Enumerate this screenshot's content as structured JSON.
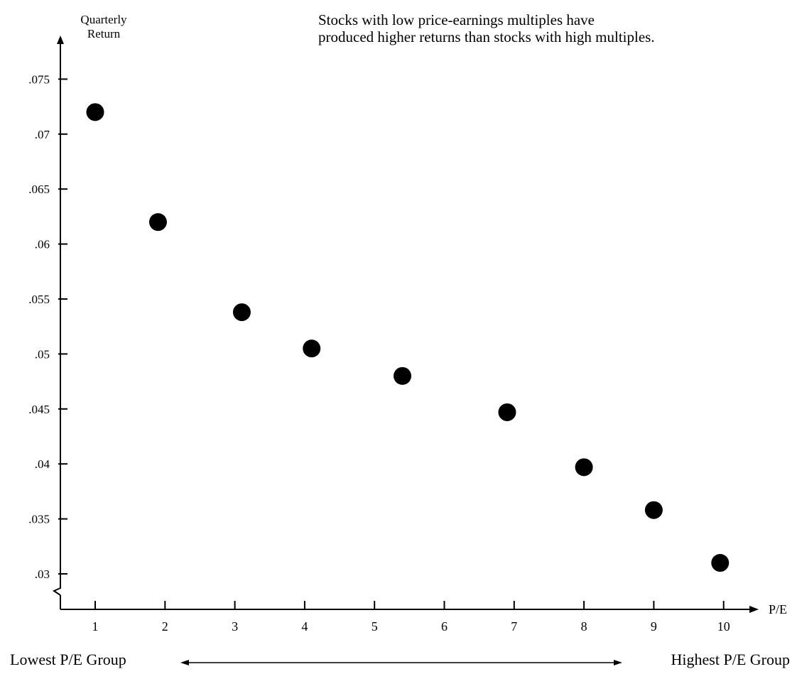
{
  "chart_data": {
    "type": "scatter",
    "title": "Stocks with low price-earnings multiples have produced higher returns than stocks with high multiples.",
    "title_lines": [
      "Stocks with low price-earnings multiples have",
      "produced higher returns than stocks with high multiples."
    ],
    "ylabel_lines": [
      "Quarterly",
      "Return"
    ],
    "xlabel": "P/E",
    "x_ticks": [
      1,
      2,
      3,
      4,
      5,
      6,
      7,
      8,
      9,
      10
    ],
    "x_tick_labels": [
      "1",
      "2",
      "3",
      "4",
      "5",
      "6",
      "7",
      "8",
      "9",
      "10"
    ],
    "y_ticks": [
      0.03,
      0.035,
      0.04,
      0.045,
      0.05,
      0.055,
      0.06,
      0.065,
      0.07,
      0.075
    ],
    "y_tick_labels": [
      ".03",
      ".035",
      ".04",
      ".045",
      ".05",
      ".055",
      ".06",
      ".065",
      ".07",
      ".075"
    ],
    "xlim": [
      0,
      10.4
    ],
    "ylim": [
      0.03,
      0.076
    ],
    "axis_break": true,
    "grid": false,
    "points": [
      {
        "x": 1.0,
        "y": 0.072
      },
      {
        "x": 1.9,
        "y": 0.062
      },
      {
        "x": 3.1,
        "y": 0.0538
      },
      {
        "x": 4.1,
        "y": 0.0505
      },
      {
        "x": 5.4,
        "y": 0.048
      },
      {
        "x": 6.9,
        "y": 0.0447
      },
      {
        "x": 8.0,
        "y": 0.0397
      },
      {
        "x": 9.0,
        "y": 0.0358
      },
      {
        "x": 9.95,
        "y": 0.031
      }
    ],
    "marker_color": "#000000",
    "group_labels": {
      "left": "Lowest P/E Group",
      "right": "Highest P/E Group"
    }
  }
}
